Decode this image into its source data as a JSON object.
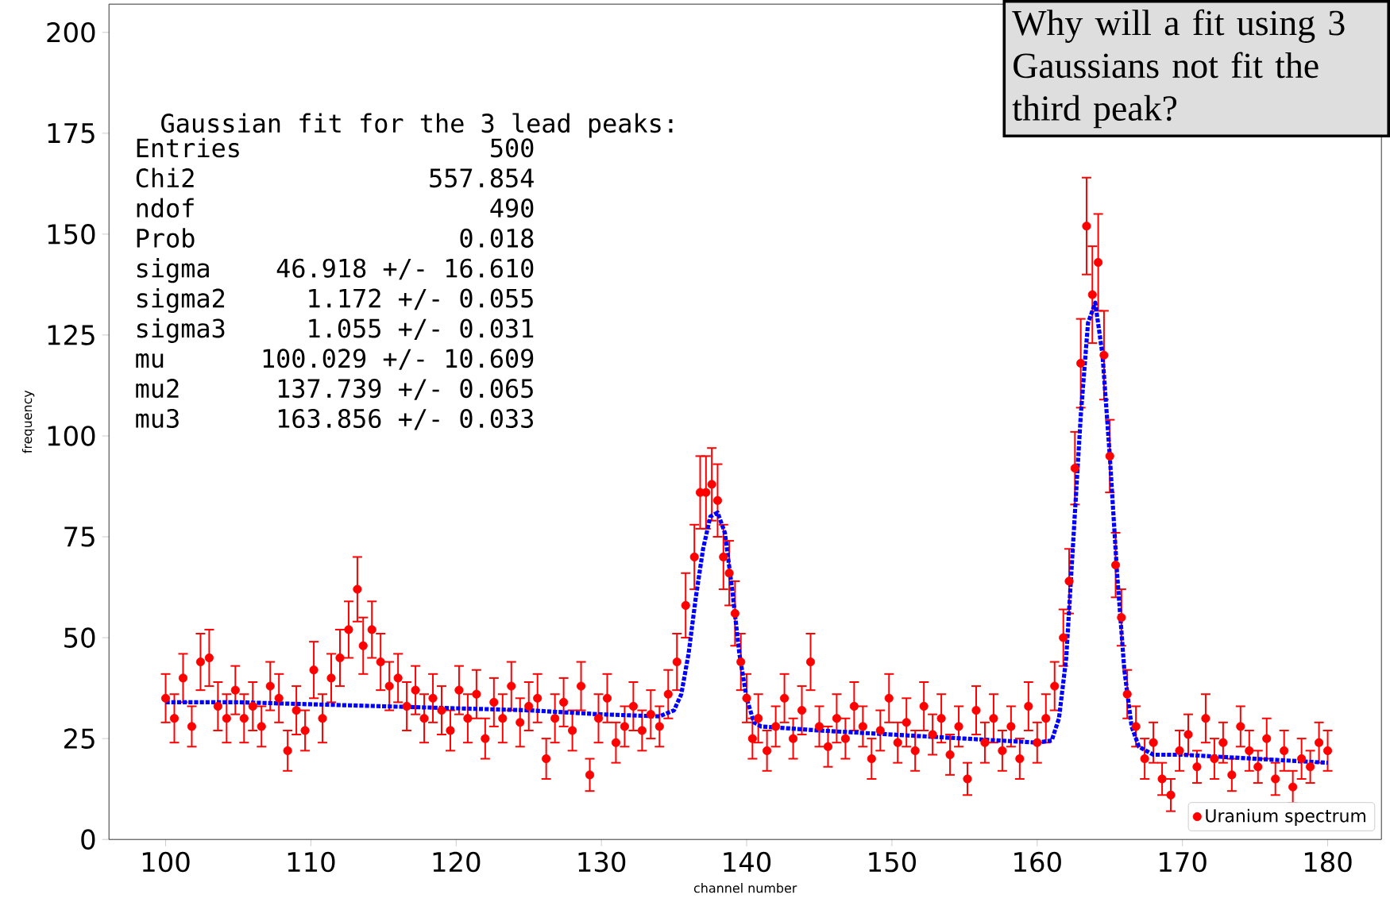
{
  "chart_data": {
    "type": "scatter",
    "xlabel": "channel number",
    "ylabel": "frequency",
    "xlim": [
      96.1,
      183.7
    ],
    "ylim": [
      0,
      207
    ],
    "xticks": [
      100,
      110,
      120,
      130,
      140,
      150,
      160,
      170,
      180
    ],
    "yticks": [
      0,
      25,
      50,
      75,
      100,
      125,
      150,
      175,
      200
    ],
    "grid": false,
    "legend": "bottom right",
    "series": [
      {
        "name": "Uranium spectrum",
        "marker": "circle",
        "color": "#ff0000",
        "x": [
          100,
          100.6,
          101.2,
          101.8,
          102.4,
          103,
          103.6,
          104.2,
          104.8,
          105.4,
          106,
          106.6,
          107.2,
          107.8,
          108.4,
          109,
          109.6,
          110.2,
          110.8,
          111.4,
          112,
          112.6,
          113.2,
          113.6,
          114.2,
          114.8,
          115.4,
          116,
          116.6,
          117.2,
          117.8,
          118.4,
          119,
          119.6,
          120.2,
          120.8,
          121.4,
          122,
          122.6,
          123.2,
          123.8,
          124.4,
          125,
          125.6,
          126.2,
          126.8,
          127.4,
          128,
          128.6,
          129.2,
          129.8,
          130.4,
          131,
          131.6,
          132.2,
          132.8,
          133.4,
          134,
          134.6,
          135.2,
          135.8,
          136.4,
          136.8,
          137.2,
          137.6,
          138,
          138.4,
          138.8,
          139.2,
          139.6,
          140,
          140.4,
          140.8,
          141.4,
          142,
          142.6,
          143.2,
          143.8,
          144.4,
          145,
          145.6,
          146.2,
          146.8,
          147.4,
          148,
          148.6,
          149.2,
          149.8,
          150.4,
          151,
          151.6,
          152.2,
          152.8,
          153.4,
          154,
          154.6,
          155.2,
          155.8,
          156.4,
          157,
          157.6,
          158.2,
          158.8,
          159.4,
          160,
          160.6,
          161.2,
          161.8,
          162.2,
          162.6,
          163,
          163.4,
          163.8,
          164.2,
          164.6,
          165,
          165.4,
          165.8,
          166.2,
          166.8,
          167.4,
          168,
          168.6,
          169.2,
          169.8,
          170.4,
          171,
          171.6,
          172.2,
          172.8,
          173.4,
          174,
          174.6,
          175.2,
          175.8,
          176.4,
          177,
          177.6,
          178.2,
          178.8,
          179.4,
          180
        ],
        "values": [
          35,
          30,
          40,
          28,
          44,
          45,
          33,
          30,
          37,
          30,
          33,
          28,
          38,
          35,
          22,
          32,
          27,
          42,
          30,
          40,
          45,
          52,
          62,
          48,
          52,
          44,
          38,
          40,
          33,
          37,
          30,
          35,
          32,
          27,
          37,
          30,
          36,
          25,
          34,
          30,
          38,
          29,
          33,
          35,
          20,
          30,
          34,
          27,
          38,
          16,
          30,
          35,
          24,
          28,
          33,
          27,
          31,
          28,
          36,
          44,
          58,
          70,
          86,
          86,
          88,
          84,
          70,
          66,
          56,
          44,
          35,
          25,
          30,
          22,
          28,
          35,
          25,
          32,
          44,
          28,
          23,
          30,
          25,
          33,
          28,
          20,
          27,
          35,
          24,
          29,
          22,
          33,
          26,
          30,
          21,
          28,
          15,
          32,
          24,
          30,
          22,
          28,
          20,
          33,
          24,
          30,
          38,
          50,
          64,
          92,
          118,
          152,
          135,
          143,
          120,
          95,
          68,
          55,
          36,
          28,
          20,
          24,
          15,
          11,
          22,
          26,
          18,
          30,
          20,
          24,
          16,
          28,
          22,
          18,
          25,
          15,
          22,
          13,
          20,
          18,
          24,
          22
        ],
        "errors": [
          6,
          6,
          6,
          5,
          7,
          7,
          6,
          6,
          6,
          6,
          6,
          5,
          6,
          6,
          5,
          6,
          5,
          7,
          6,
          6,
          7,
          7,
          8,
          7,
          7,
          7,
          6,
          6,
          6,
          6,
          6,
          6,
          6,
          5,
          6,
          6,
          6,
          5,
          6,
          6,
          6,
          6,
          6,
          6,
          5,
          6,
          6,
          5,
          6,
          4,
          6,
          6,
          5,
          5,
          6,
          5,
          6,
          5,
          6,
          7,
          8,
          8,
          9,
          9,
          9,
          9,
          8,
          8,
          8,
          7,
          6,
          5,
          6,
          5,
          5,
          6,
          5,
          6,
          7,
          5,
          5,
          6,
          5,
          6,
          5,
          5,
          5,
          6,
          5,
          6,
          5,
          6,
          5,
          6,
          5,
          5,
          4,
          6,
          5,
          6,
          5,
          5,
          5,
          6,
          5,
          6,
          6,
          7,
          8,
          9,
          11,
          12,
          12,
          12,
          11,
          9,
          8,
          7,
          6,
          5,
          5,
          5,
          4,
          4,
          5,
          5,
          4,
          6,
          5,
          5,
          4,
          5,
          5,
          4,
          5,
          4,
          5,
          4,
          5,
          4,
          5,
          5
        ]
      },
      {
        "type": "line",
        "color": "#0000ff",
        "line_style": "dotted",
        "marker": "none",
        "x": [
          100,
          105,
          110,
          115,
          120,
          125,
          130,
          134,
          135,
          135.5,
          136,
          136.5,
          137,
          137.5,
          138,
          138.5,
          139,
          139.5,
          140,
          140.5,
          141,
          145,
          150,
          155,
          160,
          161,
          161.5,
          162,
          162.5,
          163,
          163.5,
          164,
          164.5,
          165,
          165.5,
          166,
          166.5,
          167,
          168,
          170,
          175,
          180
        ],
        "values": [
          34,
          34,
          33.5,
          33,
          32.5,
          32,
          31,
          30.5,
          32,
          36,
          46,
          60,
          72,
          80,
          81,
          76,
          62,
          46,
          35,
          29,
          28,
          27,
          26,
          25,
          24,
          24.5,
          30,
          45,
          75,
          105,
          128,
          133,
          120,
          95,
          66,
          42,
          28,
          23,
          21,
          21,
          20,
          19
        ]
      }
    ],
    "annotations": [
      "Gaussian fit for the 3 lead peaks:",
      "Entries",
      "500",
      "Chi2",
      "557.854",
      "ndof",
      "490",
      "Prob",
      "0.018",
      "sigma",
      "46.918 +/- 16.610",
      "sigma2",
      "1.172 +/- 0.055",
      "sigma3",
      "1.055 +/- 0.031",
      "mu",
      "100.029 +/- 10.609",
      "mu2",
      "137.739 +/- 0.065",
      "mu3",
      "163.856 +/- 0.033",
      "Why will a fit using 3 Gaussians not fit the third peak?"
    ]
  }
}
